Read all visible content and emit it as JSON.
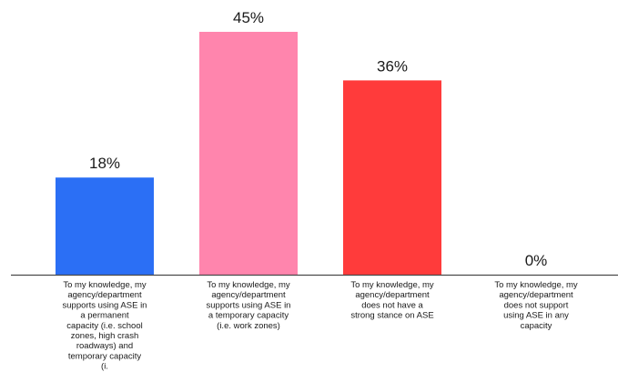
{
  "chart_data": {
    "type": "bar",
    "title": "",
    "xlabel": "",
    "ylabel": "",
    "ylim": [
      0,
      45
    ],
    "grid": false,
    "legend": "none",
    "categories": [
      "To my knowledge, my agency/department supports using ASE in a permanent capacity (i.e. school zones, high crash roadways) and temporary capacity (i.",
      "To my knowledge, my agency/department supports using ASE in a temporary capacity (i.e. work zones)",
      "To my knowledge, my agency/department does not have a strong stance on ASE",
      "To my knowledge, my agency/department does not support using ASE in any capacity"
    ],
    "category_lines": [
      [
        "To my knowledge, my",
        "agency/department",
        "supports using ASE in",
        "a permanent",
        "capacity (i.e. school",
        "zones, high crash",
        "roadways) and",
        "temporary capacity",
        "(i."
      ],
      [
        "To my knowledge, my",
        "agency/department",
        "supports using ASE in",
        "a temporary capacity",
        "(i.e. work zones)"
      ],
      [
        "To my knowledge, my",
        "agency/department",
        "does not have a",
        "strong stance on ASE"
      ],
      [
        "To my knowledge, my",
        "agency/department",
        "does not support",
        "using ASE in any",
        "capacity"
      ]
    ],
    "values": [
      18,
      45,
      36,
      0
    ],
    "value_labels": [
      "18%",
      "45%",
      "36%",
      "0%"
    ],
    "colors": [
      "#2b6ff5",
      "#ff85ad",
      "#ff3b3b",
      "#2b6ff5"
    ],
    "axis_color": "#4a4a4a"
  }
}
